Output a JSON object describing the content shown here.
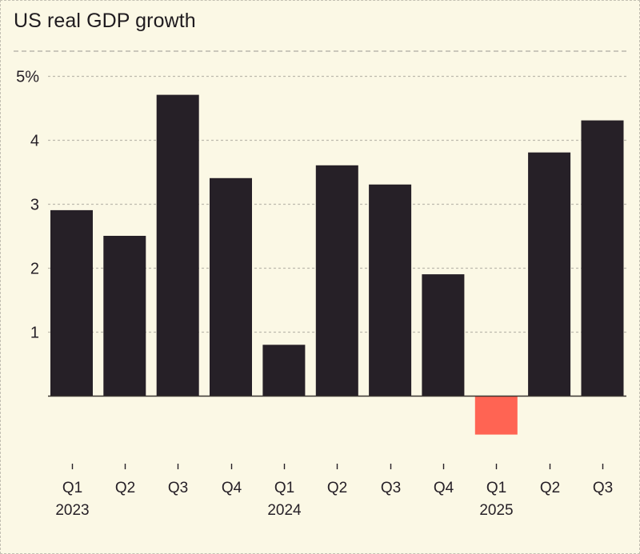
{
  "chart_data": {
    "type": "bar",
    "title": "US real GDP growth",
    "xlabel": "",
    "ylabel": "",
    "ylim": [
      -1.0,
      5.0
    ],
    "yticks": [
      1,
      2,
      3,
      4,
      5
    ],
    "ytick_labels": [
      "1",
      "2",
      "3",
      "4",
      "5%"
    ],
    "grid": true,
    "categories": [
      "Q1 2023",
      "Q2 2023",
      "Q3 2023",
      "Q4 2023",
      "Q1 2024",
      "Q2 2024",
      "Q3 2024",
      "Q4 2024",
      "Q1 2025",
      "Q2 2025",
      "Q3 2025"
    ],
    "quarter_labels": [
      "Q1",
      "Q2",
      "Q3",
      "Q4",
      "Q1",
      "Q2",
      "Q3",
      "Q4",
      "Q1",
      "Q2",
      "Q3"
    ],
    "year_labels": [
      "2023",
      "",
      "",
      "",
      "2024",
      "",
      "",
      "",
      "2025",
      "",
      ""
    ],
    "values": [
      2.9,
      2.5,
      4.7,
      3.4,
      0.8,
      3.6,
      3.3,
      1.9,
      -0.6,
      3.8,
      4.3
    ],
    "colors": {
      "positive": "#262027",
      "negative": "#ff6453",
      "background": "#fbf8e5",
      "gridline": "#bdbaad",
      "baseline": "#3a3530"
    }
  }
}
